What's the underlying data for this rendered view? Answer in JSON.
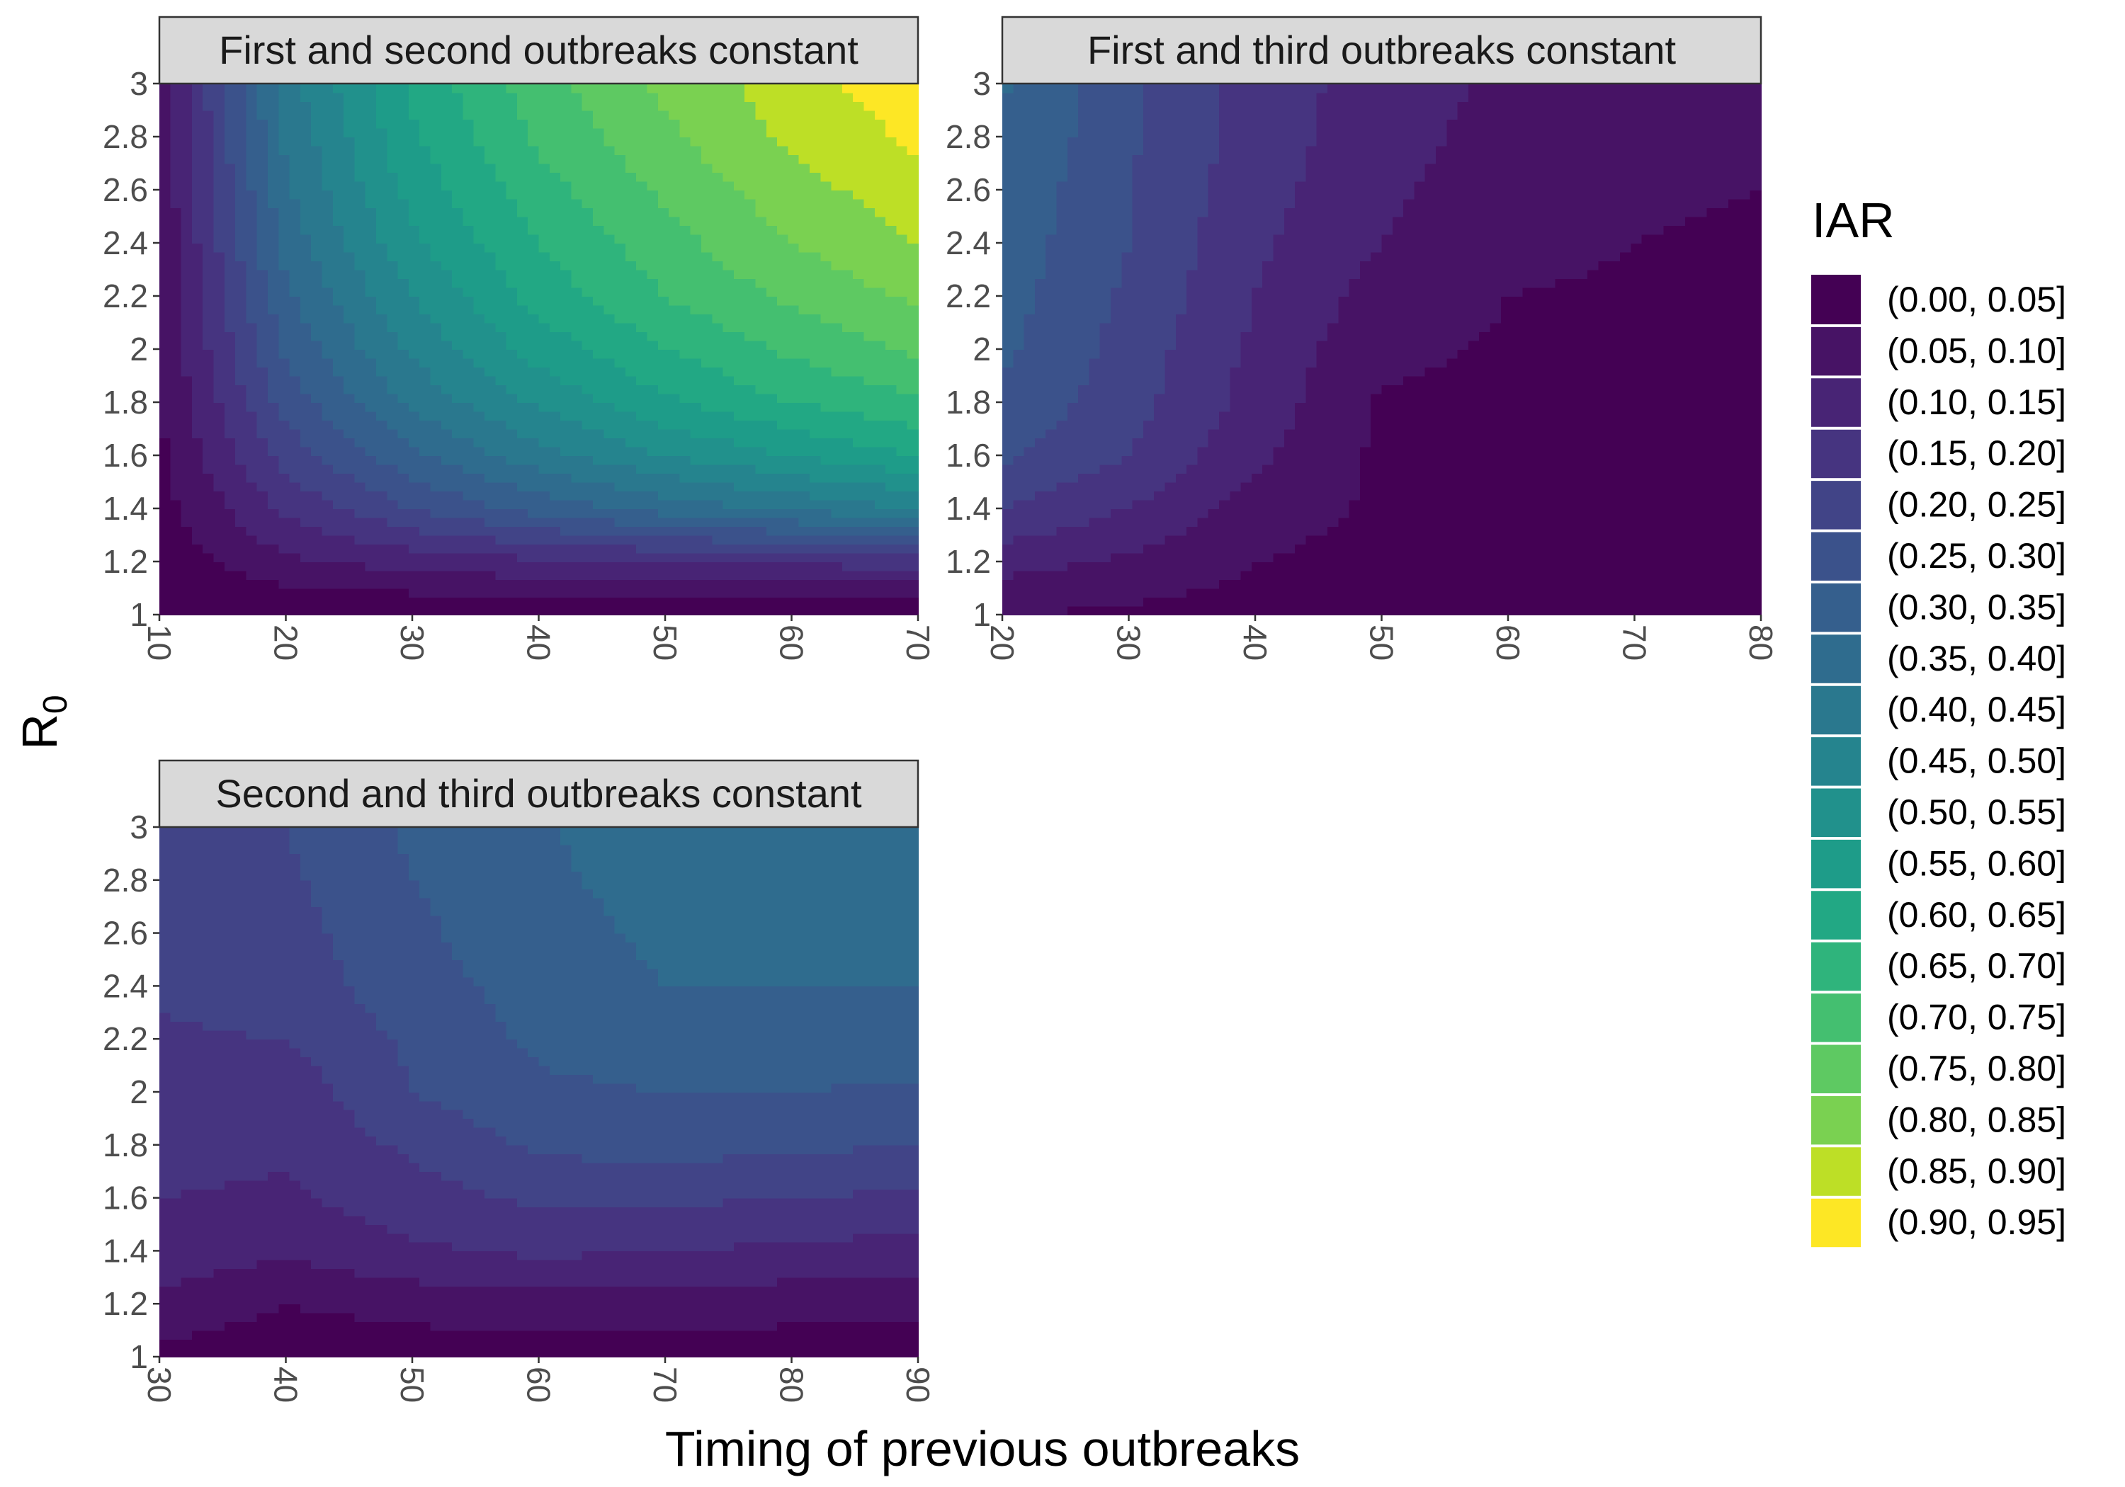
{
  "chart_data": {
    "type": "filled-contour",
    "xlabel": "Timing of previous outbreaks",
    "ylabel_main": "R",
    "ylabel_sub": "0",
    "ylim": [
      1,
      3
    ],
    "yticks": [
      "1",
      "1.2",
      "1.4",
      "1.6",
      "1.8",
      "2",
      "2.2",
      "2.4",
      "2.6",
      "2.8",
      "3"
    ],
    "legend": {
      "title": "IAR",
      "position": "right",
      "labels": [
        "(0.00, 0.05]",
        "(0.05, 0.10]",
        "(0.10, 0.15]",
        "(0.15, 0.20]",
        "(0.20, 0.25]",
        "(0.25, 0.30]",
        "(0.30, 0.35]",
        "(0.35, 0.40]",
        "(0.40, 0.45]",
        "(0.45, 0.50]",
        "(0.50, 0.55]",
        "(0.55, 0.60]",
        "(0.60, 0.65]",
        "(0.65, 0.70]",
        "(0.70, 0.75]",
        "(0.75, 0.80]",
        "(0.80, 0.85]",
        "(0.85, 0.90]",
        "(0.90, 0.95]"
      ],
      "colors": [
        "#440154",
        "#471365",
        "#482475",
        "#463480",
        "#414487",
        "#3b528b",
        "#355f8d",
        "#2f6c8e",
        "#2a788e",
        "#25848e",
        "#21918c",
        "#1e9c89",
        "#22a884",
        "#2fb47c",
        "#44bf70",
        "#5ec962",
        "#7ad151",
        "#bddf26",
        "#fde725"
      ]
    },
    "panels": [
      {
        "title": "First and second outbreaks constant",
        "x": [
          10,
          20,
          30,
          40,
          50,
          60,
          70
        ],
        "xticks": [
          "10",
          "20",
          "30",
          "40",
          "50",
          "60",
          "70"
        ],
        "y": [
          1,
          1.2,
          1.4,
          1.6,
          1.8,
          2,
          2.2,
          2.4,
          2.6,
          2.8,
          3
        ],
        "z": [
          [
            0,
            0,
            0,
            0,
            0,
            0,
            0
          ],
          [
            0.02,
            0.09,
            0.12,
            0.14,
            0.15,
            0.16,
            0.17
          ],
          [
            0.03,
            0.16,
            0.25,
            0.32,
            0.37,
            0.41,
            0.45
          ],
          [
            0.04,
            0.22,
            0.34,
            0.43,
            0.5,
            0.55,
            0.6
          ],
          [
            0.045,
            0.27,
            0.41,
            0.51,
            0.59,
            0.65,
            0.69
          ],
          [
            0.05,
            0.31,
            0.46,
            0.57,
            0.65,
            0.71,
            0.76
          ],
          [
            0.05,
            0.34,
            0.5,
            0.62,
            0.7,
            0.76,
            0.81
          ],
          [
            0.055,
            0.37,
            0.54,
            0.65,
            0.73,
            0.8,
            0.85
          ],
          [
            0.06,
            0.39,
            0.57,
            0.68,
            0.76,
            0.83,
            0.88
          ],
          [
            0.06,
            0.41,
            0.59,
            0.71,
            0.79,
            0.86,
            0.91
          ],
          [
            0.065,
            0.43,
            0.61,
            0.73,
            0.81,
            0.88,
            0.93
          ]
        ]
      },
      {
        "title": "First and third outbreaks constant",
        "x": [
          20,
          30,
          40,
          50,
          60,
          70,
          80
        ],
        "xticks": [
          "20",
          "30",
          "40",
          "50",
          "60",
          "70",
          "80"
        ],
        "y": [
          1,
          1.2,
          1.4,
          1.6,
          1.8,
          2,
          2.2,
          2.4,
          2.6,
          2.8,
          3
        ],
        "z": [
          [
            0.05,
            0.04,
            0.03,
            0.02,
            0.01,
            0.01,
            0.01
          ],
          [
            0.12,
            0.09,
            0.05,
            0.03,
            0.02,
            0.02,
            0.02
          ],
          [
            0.2,
            0.15,
            0.08,
            0.04,
            0.03,
            0.03,
            0.03
          ],
          [
            0.26,
            0.2,
            0.11,
            0.04,
            0.03,
            0.03,
            0.03
          ],
          [
            0.29,
            0.22,
            0.13,
            0.045,
            0.04,
            0.035,
            0.03
          ],
          [
            0.31,
            0.23,
            0.14,
            0.06,
            0.045,
            0.04,
            0.035
          ],
          [
            0.32,
            0.24,
            0.15,
            0.08,
            0.05,
            0.045,
            0.04
          ],
          [
            0.33,
            0.25,
            0.16,
            0.1,
            0.06,
            0.05,
            0.045
          ],
          [
            0.34,
            0.25,
            0.17,
            0.11,
            0.07,
            0.055,
            0.05
          ],
          [
            0.35,
            0.26,
            0.175,
            0.12,
            0.08,
            0.065,
            0.055
          ],
          [
            0.355,
            0.26,
            0.18,
            0.125,
            0.09,
            0.075,
            0.065
          ]
        ]
      },
      {
        "title": "Second and third outbreaks constant",
        "x": [
          30,
          40,
          50,
          60,
          70,
          80,
          90
        ],
        "xticks": [
          "30",
          "40",
          "50",
          "60",
          "70",
          "80",
          "90"
        ],
        "y": [
          1,
          1.2,
          1.4,
          1.6,
          1.8,
          2,
          2.2,
          2.4,
          2.6,
          2.8,
          3
        ],
        "z": [
          [
            0.03,
            0.02,
            0.02,
            0.02,
            0.02,
            0.02,
            0.02
          ],
          [
            0.09,
            0.05,
            0.07,
            0.08,
            0.08,
            0.07,
            0.06
          ],
          [
            0.13,
            0.11,
            0.14,
            0.16,
            0.15,
            0.14,
            0.13
          ],
          [
            0.15,
            0.14,
            0.18,
            0.21,
            0.21,
            0.2,
            0.19
          ],
          [
            0.17,
            0.16,
            0.21,
            0.26,
            0.27,
            0.26,
            0.25
          ],
          [
            0.185,
            0.17,
            0.25,
            0.29,
            0.3,
            0.3,
            0.29
          ],
          [
            0.195,
            0.2,
            0.26,
            0.31,
            0.33,
            0.33,
            0.33
          ],
          [
            0.205,
            0.22,
            0.28,
            0.32,
            0.35,
            0.35,
            0.35
          ],
          [
            0.21,
            0.23,
            0.29,
            0.33,
            0.36,
            0.36,
            0.36
          ],
          [
            0.215,
            0.24,
            0.3,
            0.34,
            0.37,
            0.37,
            0.37
          ],
          [
            0.22,
            0.25,
            0.31,
            0.345,
            0.38,
            0.38,
            0.38
          ]
        ]
      }
    ]
  }
}
